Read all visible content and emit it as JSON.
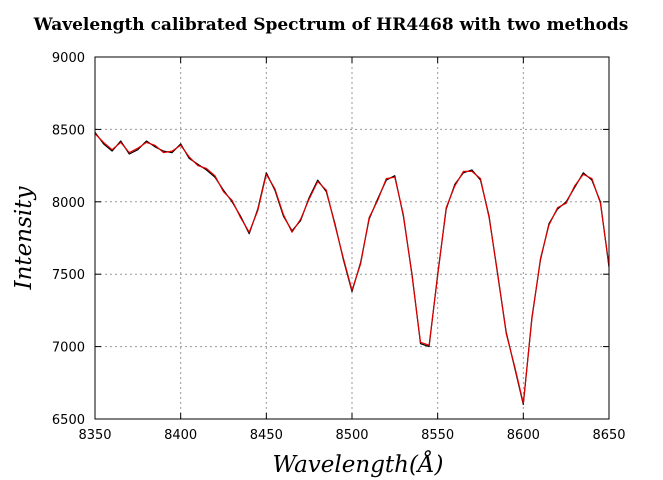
{
  "chart_data": {
    "type": "line",
    "title": "Wavelength calibrated Spectrum of HR4468 with two methods",
    "xlabel": "Wavelength(Å)",
    "ylabel": "Intensity",
    "xlim": [
      8350,
      8650
    ],
    "ylim": [
      6500,
      9000
    ],
    "xticks": [
      8350,
      8400,
      8450,
      8500,
      8550,
      8600,
      8650
    ],
    "yticks": [
      6500,
      7000,
      7500,
      8000,
      8500,
      9000
    ],
    "grid": true,
    "series": [
      {
        "color": "#000000",
        "x": [
          8350,
          8355,
          8360,
          8365,
          8370,
          8375,
          8380,
          8385,
          8390,
          8395,
          8400,
          8405,
          8410,
          8415,
          8420,
          8425,
          8430,
          8435,
          8440,
          8445,
          8450,
          8455,
          8460,
          8465,
          8470,
          8475,
          8480,
          8485,
          8490,
          8495,
          8500,
          8505,
          8510,
          8515,
          8520,
          8525,
          8530,
          8535,
          8540,
          8545,
          8550,
          8555,
          8560,
          8565,
          8570,
          8575,
          8580,
          8585,
          8590,
          8595,
          8600,
          8605,
          8610,
          8615,
          8620,
          8625,
          8630,
          8635,
          8640,
          8645,
          8650
        ],
        "y": [
          8480,
          8400,
          8350,
          8420,
          8330,
          8360,
          8420,
          8380,
          8350,
          8340,
          8400,
          8300,
          8260,
          8220,
          8170,
          8080,
          8000,
          7900,
          7780,
          7950,
          8200,
          8080,
          7900,
          7800,
          7870,
          8030,
          8150,
          8070,
          7850,
          7600,
          7380,
          7580,
          7880,
          8020,
          8150,
          8180,
          7900,
          7500,
          7020,
          7000,
          7500,
          7950,
          8120,
          8200,
          8220,
          8150,
          7900,
          7500,
          7100,
          6850,
          6600,
          7200,
          7600,
          7850,
          7950,
          8000,
          8100,
          8200,
          8150,
          8000,
          7550
        ]
      },
      {
        "color": "#e00000",
        "x": [
          8350,
          8355,
          8360,
          8365,
          8370,
          8375,
          8380,
          8385,
          8390,
          8395,
          8400,
          8405,
          8410,
          8415,
          8420,
          8425,
          8430,
          8435,
          8440,
          8445,
          8450,
          8455,
          8460,
          8465,
          8470,
          8475,
          8480,
          8485,
          8490,
          8495,
          8500,
          8505,
          8510,
          8515,
          8520,
          8525,
          8530,
          8535,
          8540,
          8545,
          8550,
          8555,
          8560,
          8565,
          8570,
          8575,
          8580,
          8585,
          8590,
          8595,
          8600,
          8605,
          8610,
          8615,
          8620,
          8625,
          8630,
          8635,
          8640,
          8645,
          8650
        ],
        "y": [
          8470,
          8410,
          8360,
          8410,
          8340,
          8370,
          8410,
          8390,
          8340,
          8350,
          8390,
          8310,
          8250,
          8230,
          8180,
          8070,
          8010,
          7890,
          7790,
          7940,
          8190,
          8090,
          7910,
          7790,
          7880,
          8020,
          8140,
          8080,
          7840,
          7610,
          7390,
          7570,
          7890,
          8010,
          8160,
          8170,
          7910,
          7490,
          7030,
          7010,
          7490,
          7960,
          8110,
          8210,
          8210,
          8160,
          7890,
          7510,
          7090,
          6860,
          6610,
          7190,
          7610,
          7840,
          7960,
          7990,
          8110,
          8190,
          8160,
          7990,
          7560
        ]
      }
    ]
  }
}
